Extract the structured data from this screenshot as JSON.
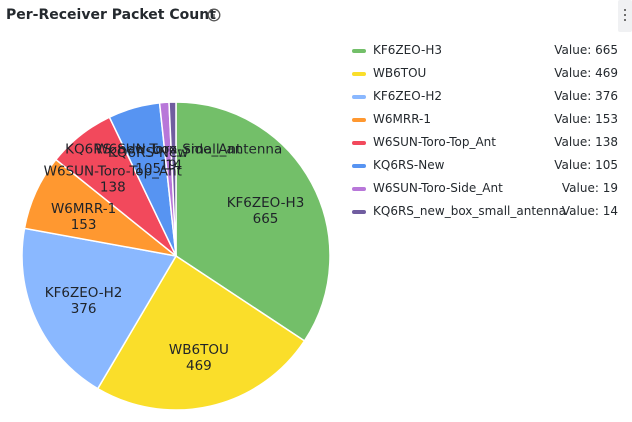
{
  "panel": {
    "title": "Per-Receiver Packet Count",
    "info_icon": "info-circle-icon",
    "menu_icon": "vertical-ellipsis-icon"
  },
  "legend": {
    "value_prefix": "Value: ",
    "placement": "right"
  },
  "chart_data": {
    "type": "pie",
    "title": "Per-Receiver Packet Count",
    "categories": [
      "KF6ZEO-H3",
      "WB6TOU",
      "KF6ZEO-H2",
      "W6MRR-1",
      "W6SUN-Toro-Top_Ant",
      "KQ6RS-New",
      "W6SUN-Toro-Side_Ant",
      "KQ6RS_new_box_small_antenna"
    ],
    "values": [
      665,
      469,
      376,
      153,
      138,
      105,
      19,
      14
    ],
    "colors": [
      "#73bf69",
      "#fade2a",
      "#8ab8ff",
      "#ff9830",
      "#f2495c",
      "#5794f2",
      "#b877d9",
      "#705da0"
    ],
    "slice_labels": true
  }
}
